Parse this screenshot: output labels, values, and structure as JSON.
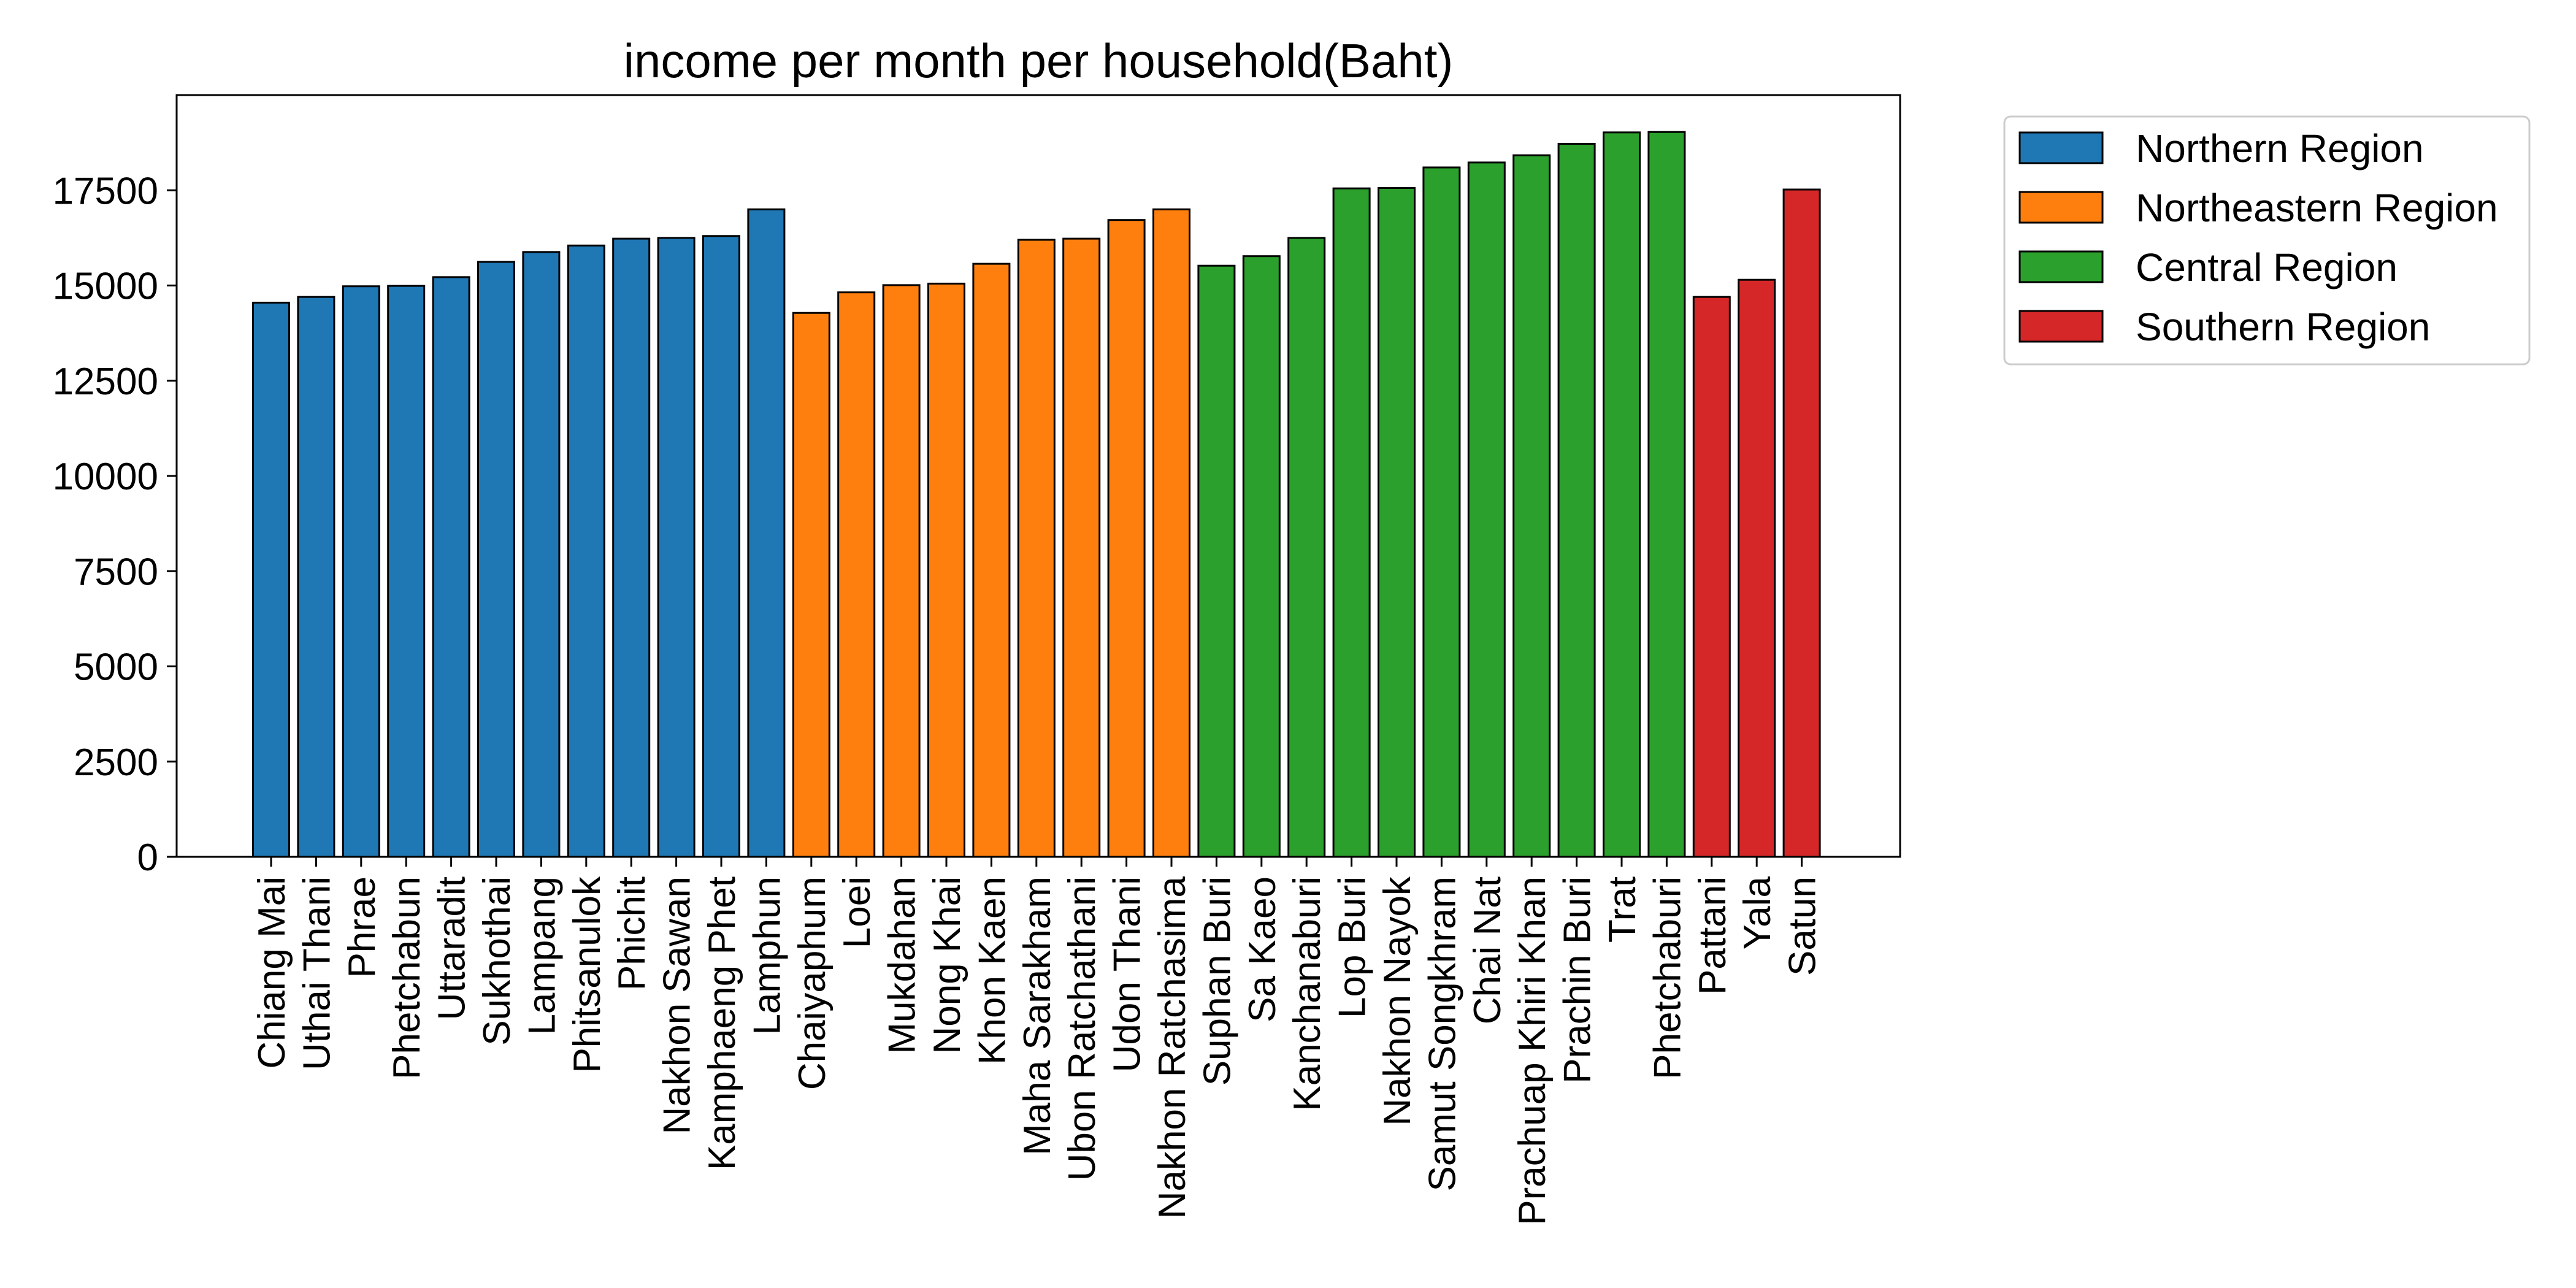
{
  "chart_data": {
    "type": "bar",
    "title": "income per month per household(Baht)",
    "xlabel": "",
    "ylabel": "",
    "ylim": [
      0,
      20000
    ],
    "yticks": [
      0,
      2500,
      5000,
      7500,
      10000,
      12500,
      15000,
      17500
    ],
    "grid": false,
    "legend_placement": "outside-top-right",
    "series": [
      {
        "name": "Northern Region",
        "color": "#1f77b4",
        "categories": [
          "Chiang Mai",
          "Uthai Thani",
          "Phrae",
          "Phetchabun",
          "Uttaradit",
          "Sukhothai",
          "Lampang",
          "Phitsanulok",
          "Phichit",
          "Nakhon Sawan",
          "Kamphaeng Phet",
          "Lamphun"
        ],
        "values": [
          14550,
          14700,
          14980,
          14990,
          15220,
          15620,
          15880,
          16050,
          16230,
          16250,
          16300,
          17000
        ]
      },
      {
        "name": "Northeastern Region",
        "color": "#ff7f0e",
        "categories": [
          "Chaiyaphum",
          "Loei",
          "Mukdahan",
          "Nong Khai",
          "Khon Kaen",
          "Maha Sarakham",
          "Ubon Ratchathani",
          "Udon Thani",
          "Nakhon Ratchasima"
        ],
        "values": [
          14280,
          14820,
          15010,
          15050,
          15570,
          16200,
          16230,
          16720,
          17000
        ]
      },
      {
        "name": "Central Region",
        "color": "#2ca02c",
        "categories": [
          "Suphan Buri",
          "Sa Kaeo",
          "Kanchanaburi",
          "Lop Buri",
          "Nakhon Nayok",
          "Samut Songkhram",
          "Chai Nat",
          "Prachuap Khiri Khan",
          "Prachin Buri",
          "Trat",
          "Phetchaburi"
        ],
        "values": [
          15520,
          15770,
          16250,
          17550,
          17560,
          18100,
          18230,
          18420,
          18720,
          19020,
          19030
        ]
      },
      {
        "name": "Southern Region",
        "color": "#d62728",
        "categories": [
          "Pattani",
          "Yala",
          "Satun"
        ],
        "values": [
          14700,
          15150,
          17520
        ]
      }
    ]
  }
}
